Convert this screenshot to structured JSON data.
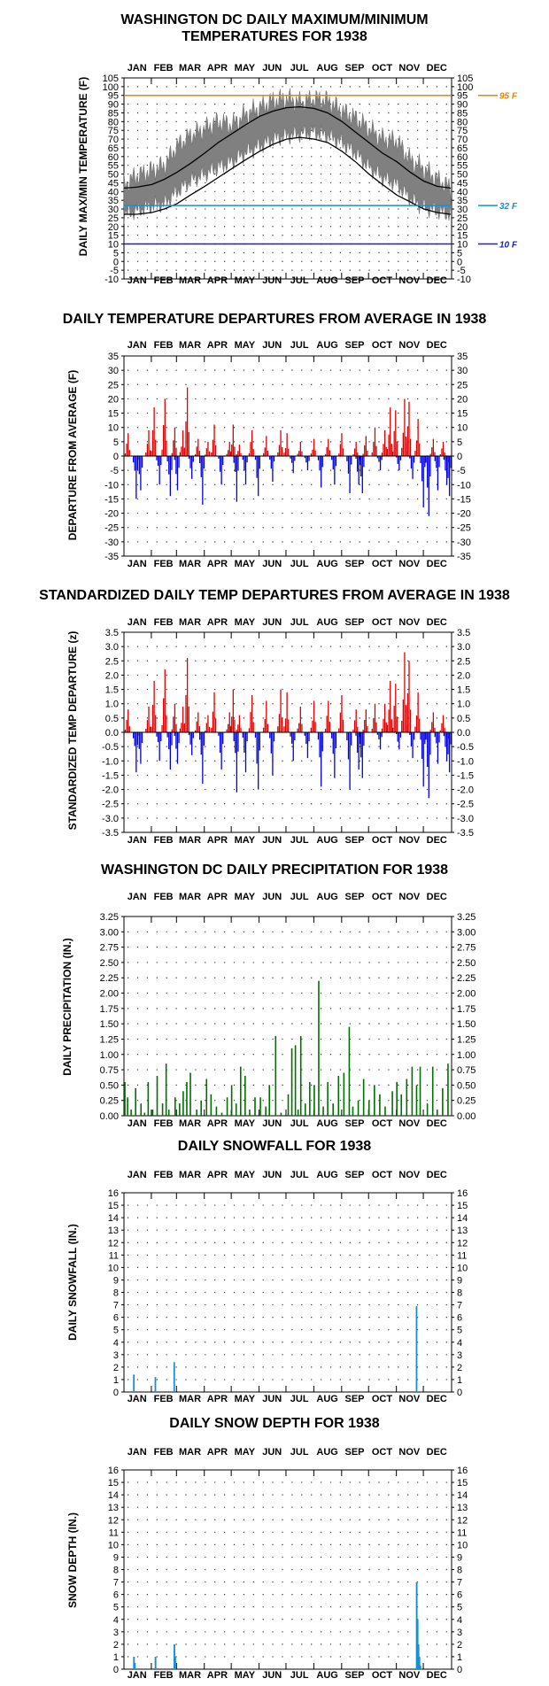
{
  "months": [
    "JAN",
    "FEB",
    "MAR",
    "APR",
    "MAY",
    "JUN",
    "JUL",
    "AUG",
    "SEP",
    "OCT",
    "NOV",
    "DEC"
  ],
  "chart_data": [
    {
      "id": "temps",
      "type": "line",
      "title": [
        "WASHINGTON DC DAILY MAXIMUM/MINIMUM",
        "TEMPERATURES FOR 1938"
      ],
      "ylabel": "DAILY MAX/MIN TEMPERATURE (F)",
      "ylim": [
        -10,
        105
      ],
      "ytick_step": 5,
      "reference_lines": [
        {
          "value": 95,
          "label": "95 F",
          "color": "#f08000"
        },
        {
          "value": 32,
          "label": "32 F",
          "color": "#1a8fd0"
        },
        {
          "value": 10,
          "label": "10 F",
          "color": "#2020c8"
        }
      ],
      "series": [
        {
          "role": "band",
          "color": "#808080",
          "x": [
            1,
            15,
            32,
            46,
            60,
            75,
            91,
            106,
            121,
            136,
            152,
            167,
            182,
            197,
            213,
            228,
            244,
            259,
            274,
            289,
            305,
            320,
            335,
            350,
            365
          ],
          "max": [
            44,
            49,
            52,
            55,
            66,
            72,
            76,
            80,
            78,
            84,
            88,
            92,
            93,
            91,
            93,
            92,
            86,
            82,
            76,
            70,
            69,
            58,
            53,
            47,
            42
          ],
          "min": [
            27,
            29,
            32,
            33,
            40,
            46,
            50,
            54,
            57,
            62,
            66,
            70,
            72,
            73,
            74,
            72,
            68,
            62,
            54,
            48,
            44,
            36,
            31,
            29,
            27
          ]
        },
        {
          "role": "normal",
          "color": "#000000",
          "x": [
            1,
            15,
            32,
            46,
            60,
            75,
            91,
            106,
            121,
            136,
            152,
            167,
            182,
            197,
            213,
            228,
            244,
            259,
            274,
            289,
            305,
            320,
            335,
            350,
            365
          ],
          "max": [
            42,
            42.5,
            44,
            47,
            51,
            56,
            62,
            68,
            73,
            78,
            83,
            86,
            88,
            88.5,
            87.5,
            85,
            80,
            74,
            68,
            62,
            57,
            51,
            46,
            43,
            42
          ],
          "min": [
            27,
            27,
            28,
            30,
            33,
            38,
            43,
            48,
            53,
            58,
            63,
            67,
            70,
            71,
            70,
            68,
            63,
            57,
            50,
            44,
            38,
            34,
            30,
            28,
            27
          ]
        }
      ]
    },
    {
      "id": "departures",
      "type": "bar",
      "title": [
        "DAILY TEMPERATURE DEPARTURES FROM AVERAGE IN 1938"
      ],
      "ylabel": "DEPARTURE FROM AVERAGE (F)",
      "ylim": [
        -35,
        35
      ],
      "ytick_step": 5,
      "colors": {
        "positive": "#e00000",
        "negative": "#0000e0"
      },
      "series": [
        {
          "name": "daily departure",
          "x": [
            5,
            14,
            19,
            28,
            34,
            40,
            46,
            52,
            57,
            60,
            66,
            71,
            76,
            83,
            88,
            94,
            101,
            109,
            118,
            122,
            126,
            129,
            136,
            143,
            150,
            159,
            166,
            175,
            182,
            189,
            197,
            205,
            212,
            220,
            228,
            235,
            243,
            252,
            259,
            262,
            266,
            270,
            280,
            286,
            291,
            297,
            303,
            307,
            313,
            318,
            322,
            328,
            334,
            340,
            345,
            350,
            356,
            360,
            363
          ],
          "values": [
            8,
            -15,
            -12,
            9,
            17,
            -10,
            20,
            -14,
            10,
            -12,
            9,
            24,
            -8,
            6,
            -17,
            5,
            11,
            -10,
            5,
            11,
            -16,
            4,
            -10,
            9,
            -14,
            7,
            -9,
            9,
            8,
            -6,
            5,
            -5,
            6,
            -11,
            6,
            -10,
            8,
            -13,
            5,
            -10,
            -13,
            7,
            10,
            -5,
            9,
            17,
            16,
            -5,
            20,
            19,
            -8,
            13,
            -18,
            -21,
            6,
            -12,
            5,
            -10,
            -14
          ]
        }
      ]
    },
    {
      "id": "standardized",
      "type": "bar",
      "title": [
        "STANDARDIZED DAILY TEMP DEPARTURES FROM AVERAGE IN 1938"
      ],
      "ylabel": "STANDARDIZED TEMP DEPARTURE (z)",
      "ylim": [
        -3.5,
        3.5
      ],
      "ytick_step": 0.5,
      "colors": {
        "positive": "#e00000",
        "negative": "#0000e0"
      },
      "series": [
        {
          "name": "daily z-score",
          "x": [
            5,
            14,
            19,
            28,
            34,
            40,
            46,
            52,
            57,
            60,
            66,
            71,
            76,
            83,
            88,
            94,
            101,
            109,
            118,
            122,
            126,
            129,
            136,
            143,
            150,
            159,
            166,
            175,
            182,
            189,
            197,
            205,
            212,
            220,
            228,
            235,
            243,
            252,
            259,
            262,
            266,
            270,
            280,
            286,
            291,
            297,
            303,
            307,
            313,
            318,
            322,
            328,
            334,
            340,
            345,
            350,
            356,
            360,
            363
          ],
          "values": [
            0.8,
            -1.4,
            -1.1,
            0.9,
            1.8,
            -1.0,
            2.2,
            -1.3,
            1.0,
            -1.1,
            0.9,
            2.6,
            -0.8,
            0.7,
            -1.8,
            0.6,
            1.4,
            -1.3,
            0.7,
            1.5,
            -2.1,
            0.6,
            -1.4,
            1.3,
            -2.0,
            1.1,
            -1.5,
            1.5,
            1.4,
            -1.0,
            0.9,
            -0.9,
            1.1,
            -1.9,
            1.1,
            -1.6,
            1.3,
            -2.0,
            0.8,
            -1.3,
            -1.6,
            0.8,
            1.0,
            -0.6,
            1.0,
            1.8,
            1.7,
            -0.6,
            2.8,
            2.5,
            -0.9,
            1.4,
            -1.9,
            -2.3,
            0.7,
            -1.1,
            0.6,
            -1.0,
            -1.4
          ]
        }
      ]
    },
    {
      "id": "precipitation",
      "type": "bar",
      "title": [
        "WASHINGTON DC DAILY PRECIPITATION FOR 1938"
      ],
      "ylabel": "DAILY PRECIPITATION (IN.)",
      "ylim": [
        0,
        3.25
      ],
      "ytick_step": 0.25,
      "colors": {
        "bar": "#007000"
      },
      "series": [
        {
          "name": "daily precipitation",
          "x": [
            2,
            5,
            9,
            14,
            20,
            24,
            28,
            33,
            38,
            44,
            48,
            51,
            58,
            63,
            67,
            71,
            75,
            82,
            87,
            93,
            98,
            104,
            110,
            116,
            121,
            126,
            131,
            136,
            141,
            147,
            153,
            159,
            163,
            170,
            176,
            184,
            188,
            192,
            195,
            198,
            203,
            208,
            213,
            218,
            223,
            228,
            234,
            240,
            246,
            252,
            256,
            262,
            268,
            274,
            280,
            286,
            292,
            300,
            305,
            310,
            316,
            322,
            327,
            331,
            339,
            345,
            350,
            356,
            362
          ],
          "values": [
            0.55,
            0.3,
            0.1,
            0.45,
            0.2,
            0.05,
            0.55,
            0.1,
            0.65,
            0.2,
            0.85,
            0.1,
            0.3,
            0.2,
            0.4,
            0.55,
            0.7,
            0.1,
            0.25,
            0.6,
            0.35,
            0.15,
            0.05,
            0.3,
            0.5,
            0.2,
            0.8,
            0.65,
            0.1,
            0.3,
            0.3,
            0.15,
            0.5,
            1.3,
            0.05,
            0.35,
            1.1,
            1.15,
            0.1,
            1.3,
            0.2,
            0.55,
            0.5,
            2.2,
            0.15,
            0.55,
            0.2,
            0.65,
            0.7,
            1.45,
            0.15,
            0.25,
            0.6,
            0.25,
            0.5,
            0.35,
            0.15,
            0.4,
            0.55,
            0.35,
            0.6,
            0.8,
            0.5,
            0.8,
            0.2,
            0.8,
            0.1,
            0.45,
            0.85
          ]
        }
      ]
    },
    {
      "id": "snowfall",
      "type": "bar",
      "title": [
        "DAILY SNOWFALL FOR 1938"
      ],
      "ylabel": "DAILY SNOWFALL (IN.)",
      "ylim": [
        0,
        16
      ],
      "ytick_step": 1,
      "colors": {
        "bar": "#1a8fd0"
      },
      "series": [
        {
          "name": "daily snowfall",
          "x": [
            12,
            36,
            57,
            327
          ],
          "values": [
            1.4,
            1.2,
            2.4,
            6.9
          ]
        }
      ]
    },
    {
      "id": "snowdepth",
      "type": "area",
      "title": [
        "DAILY SNOW DEPTH FOR 1938"
      ],
      "ylabel": "SNOW DEPTH (IN.)",
      "ylim": [
        0,
        16
      ],
      "ytick_step": 1,
      "colors": {
        "fill": "#1a8fd0"
      },
      "series": [
        {
          "name": "daily snow depth",
          "x": [
            12,
            13,
            36,
            57,
            58,
            327,
            328,
            329,
            330,
            331
          ],
          "values": [
            1.0,
            0.5,
            1.0,
            2.0,
            1.0,
            7.0,
            4.0,
            2.0,
            1.0,
            0.3
          ]
        }
      ]
    }
  ]
}
